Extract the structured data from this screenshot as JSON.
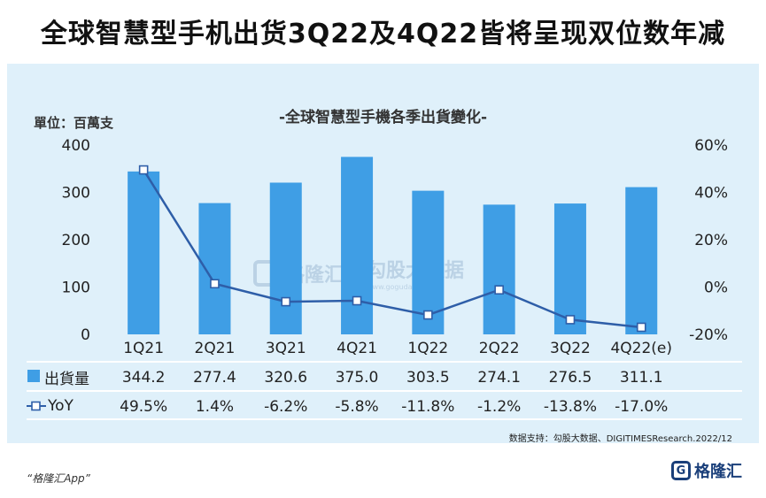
{
  "headline": "全球智慧型手机出货3Q22及4Q22皆将呈现双位数年减",
  "chart_data": {
    "type": "bar",
    "title": "-全球智慧型手機各季出貨變化-",
    "unit_label": "單位：百萬支",
    "categories": [
      "1Q21",
      "2Q21",
      "3Q21",
      "4Q21",
      "1Q22",
      "2Q22",
      "3Q22",
      "4Q22(e)"
    ],
    "series": [
      {
        "name": "出貨量",
        "type": "bar",
        "axis": "left",
        "color": "#3f9ee5",
        "values": [
          344.2,
          277.4,
          320.6,
          375.0,
          303.5,
          274.1,
          276.5,
          311.1
        ],
        "labels": [
          "344.2",
          "277.4",
          "320.6",
          "375.0",
          "303.5",
          "274.1",
          "276.5",
          "311.1"
        ]
      },
      {
        "name": "YoY",
        "type": "line",
        "axis": "right",
        "color": "#2e5ea8",
        "values": [
          49.5,
          1.4,
          -6.2,
          -5.8,
          -11.8,
          -1.2,
          -13.8,
          -17.0
        ],
        "labels": [
          "49.5%",
          "1.4%",
          "-6.2%",
          "-5.8%",
          "-11.8%",
          "-1.2%",
          "-13.8%",
          "-17.0%"
        ]
      }
    ],
    "ylim": [
      0,
      400
    ],
    "y_ticks": [
      "0",
      "100",
      "200",
      "300",
      "400"
    ],
    "y2lim": [
      -20,
      60
    ],
    "y2_ticks": [
      "-20%",
      "0%",
      "20%",
      "40%",
      "60%"
    ],
    "grid": false
  },
  "source": "数据支持：勾股大数据、DIGITIMESResearch.2022/12",
  "watermark": {
    "brand": "格隆汇",
    "partner": "勾股大数据",
    "partner_url": "www.gogudata.com"
  },
  "footer": {
    "app": "“格隆汇App”"
  },
  "logo": {
    "text": "格隆汇",
    "mark": "G"
  }
}
